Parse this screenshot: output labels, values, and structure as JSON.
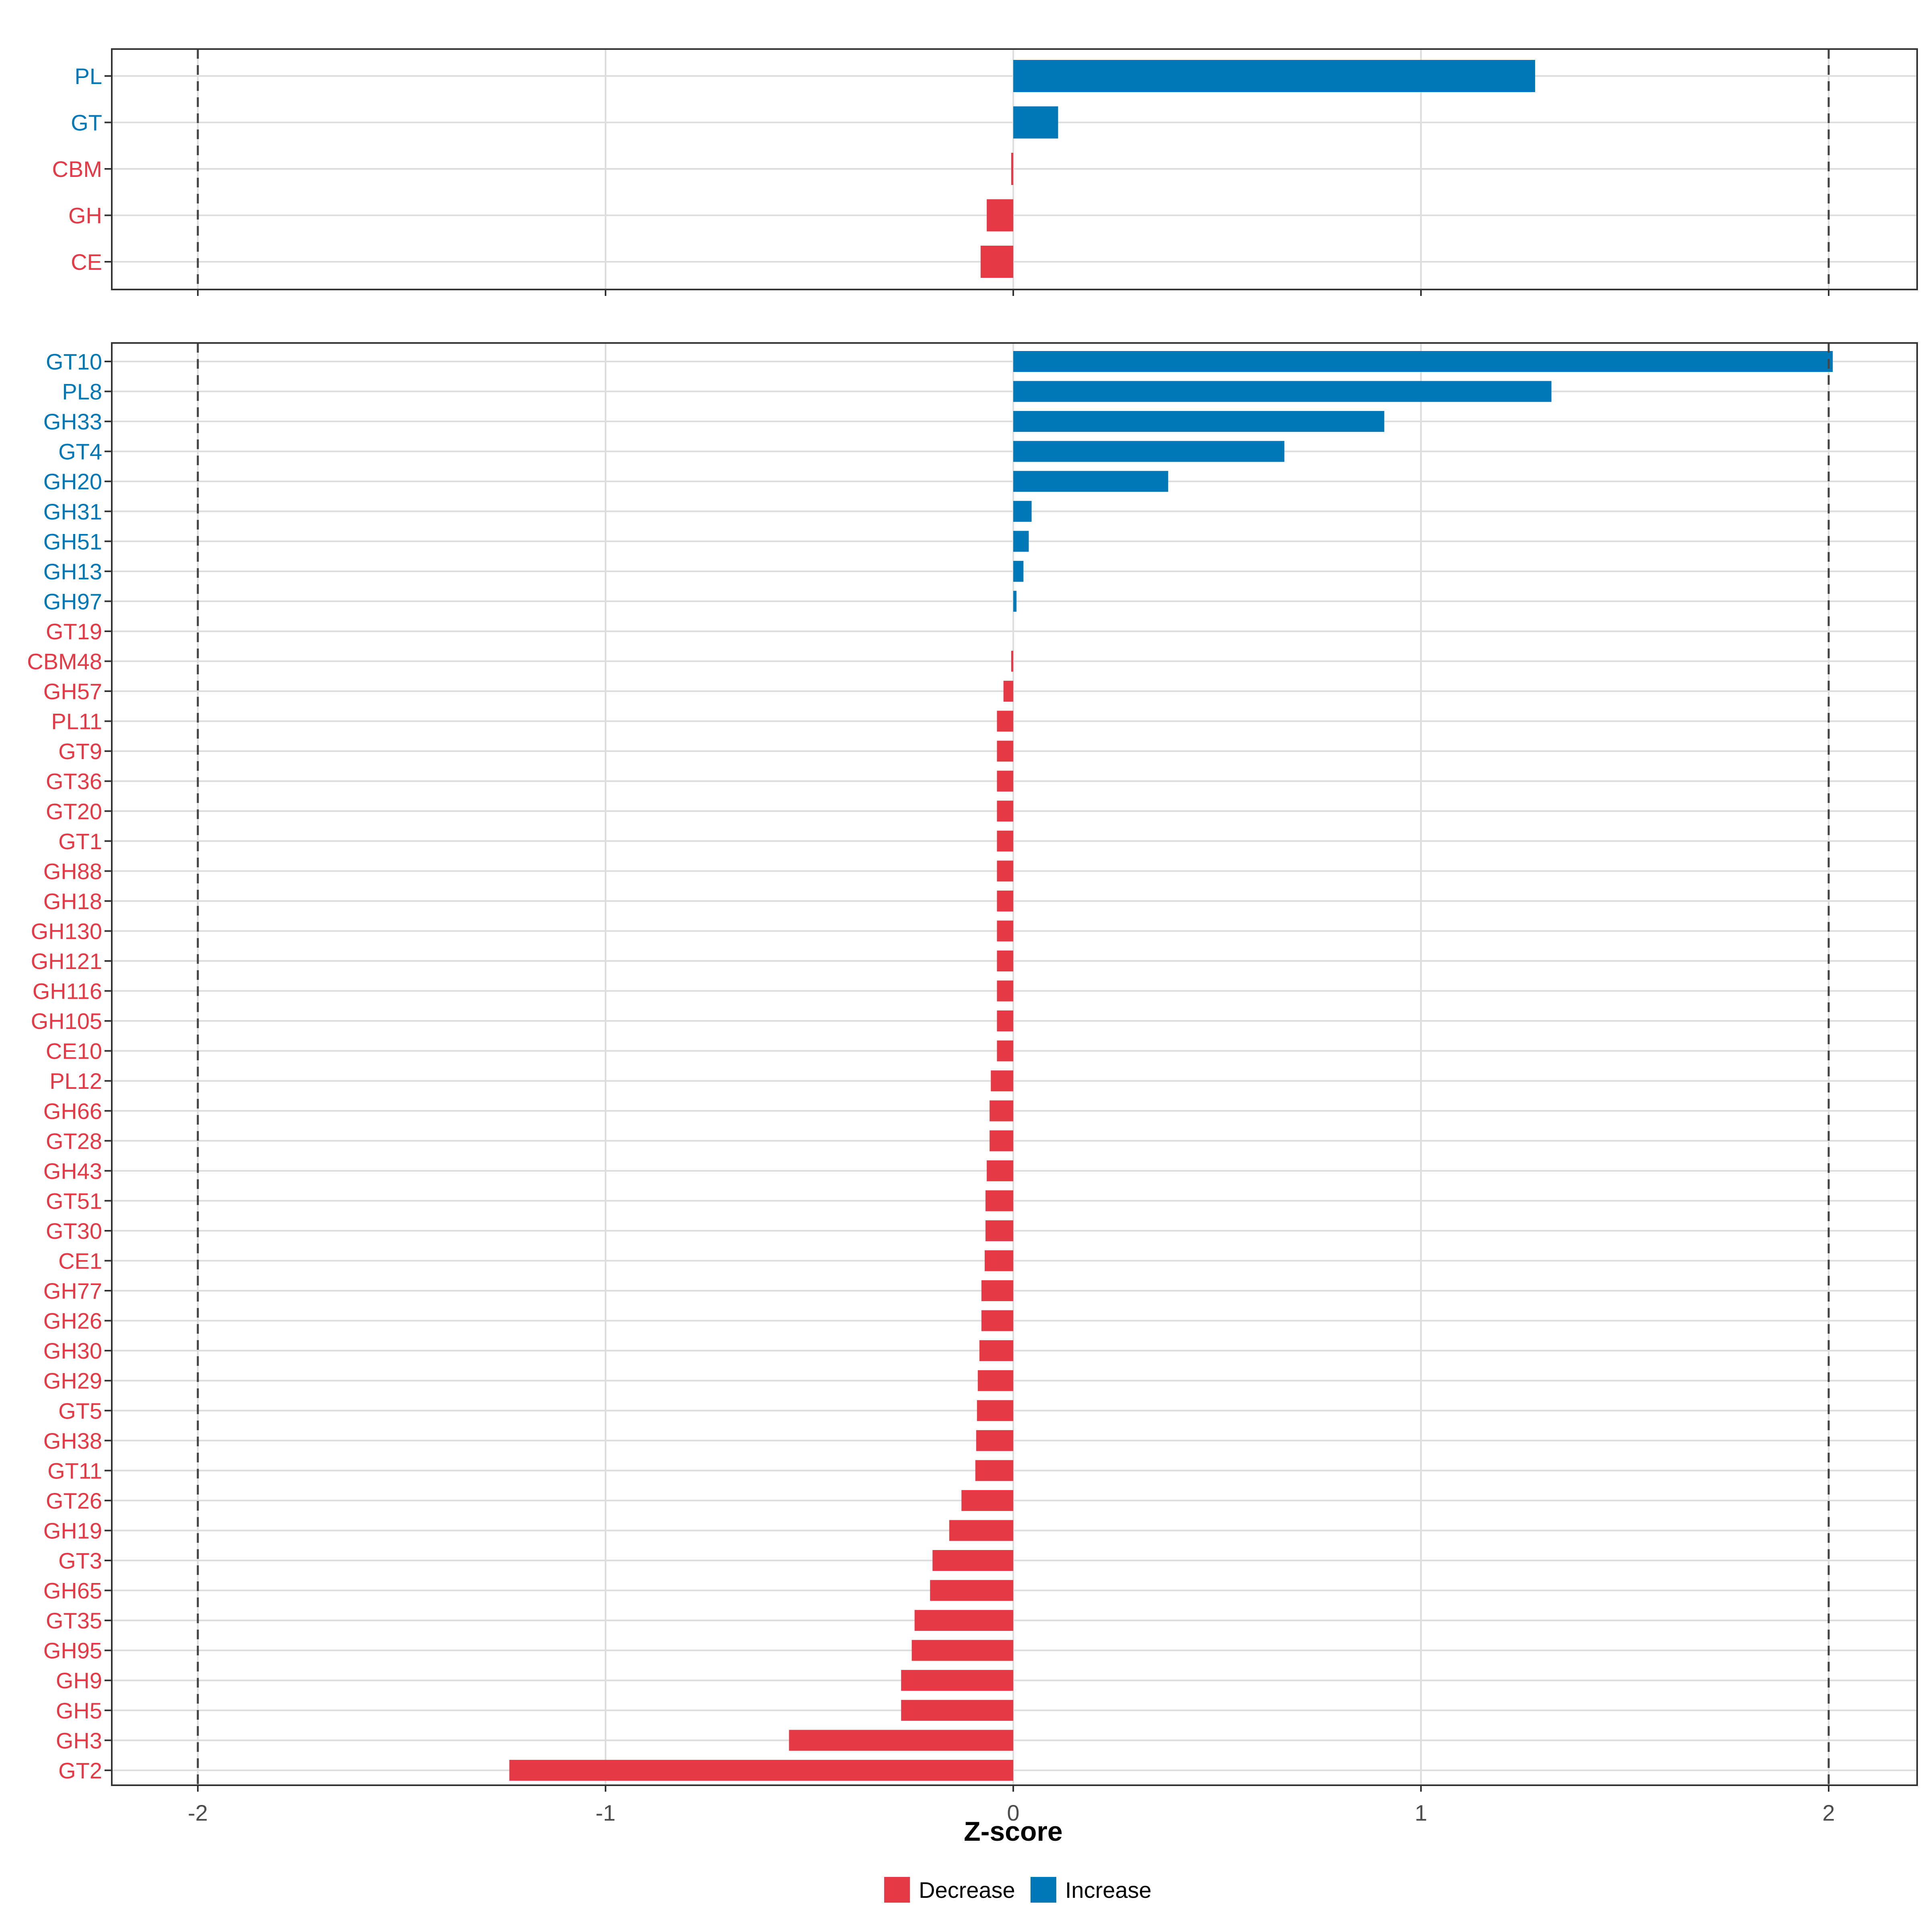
{
  "chart_data": [
    {
      "type": "bar",
      "orientation": "horizontal",
      "panel": "top",
      "categories": [
        "PL",
        "GT",
        "CBM",
        "GH",
        "CE"
      ],
      "values": [
        1.28,
        0.11,
        -0.005,
        -0.065,
        -0.08
      ],
      "xlim": [
        -2.2,
        2.2
      ],
      "reference_lines": [
        -2,
        2
      ],
      "grid": true
    },
    {
      "type": "bar",
      "orientation": "horizontal",
      "panel": "bottom",
      "categories": [
        "GT10",
        "PL8",
        "GH33",
        "GT4",
        "GH20",
        "GH31",
        "GH51",
        "GH13",
        "GH97",
        "GT19",
        "CBM48",
        "GH57",
        "PL11",
        "GT9",
        "GT36",
        "GT20",
        "GT1",
        "GH88",
        "GH18",
        "GH130",
        "GH121",
        "GH116",
        "GH105",
        "CE10",
        "PL12",
        "GH66",
        "GT28",
        "GH43",
        "GT51",
        "GT30",
        "CE1",
        "GH77",
        "GH26",
        "GH30",
        "GH29",
        "GT5",
        "GH38",
        "GT11",
        "GT26",
        "GH19",
        "GT3",
        "GH65",
        "GT35",
        "GH95",
        "GH9",
        "GH5",
        "GH3",
        "GT2"
      ],
      "values": [
        2.01,
        1.32,
        0.91,
        0.665,
        0.38,
        0.045,
        0.038,
        0.025,
        0.008,
        0.0,
        -0.005,
        -0.024,
        -0.04,
        -0.04,
        -0.04,
        -0.04,
        -0.04,
        -0.04,
        -0.04,
        -0.04,
        -0.04,
        -0.04,
        -0.04,
        -0.04,
        -0.055,
        -0.058,
        -0.058,
        -0.065,
        -0.068,
        -0.068,
        -0.07,
        -0.078,
        -0.078,
        -0.083,
        -0.087,
        -0.089,
        -0.091,
        -0.093,
        -0.127,
        -0.157,
        -0.198,
        -0.204,
        -0.242,
        -0.249,
        -0.275,
        -0.275,
        -0.55,
        -1.236
      ],
      "xlim": [
        -2.2,
        2.2
      ],
      "reference_lines": [
        -2,
        2
      ],
      "grid": true,
      "xlabel": "Z-score",
      "xticks": [
        -2,
        -1,
        0,
        1,
        2
      ],
      "xtick_labels": [
        "-2",
        "-1",
        "0",
        "1",
        "2"
      ]
    }
  ],
  "legend": {
    "items": [
      {
        "label": "Decrease",
        "color": "#E63946"
      },
      {
        "label": "Increase",
        "color": "#0077B6"
      }
    ]
  },
  "colors": {
    "increase": "#0077B6",
    "decrease": "#E63946",
    "grid": "#DDDDDD",
    "panel_border": "#333333",
    "ref_line": "#444444"
  }
}
